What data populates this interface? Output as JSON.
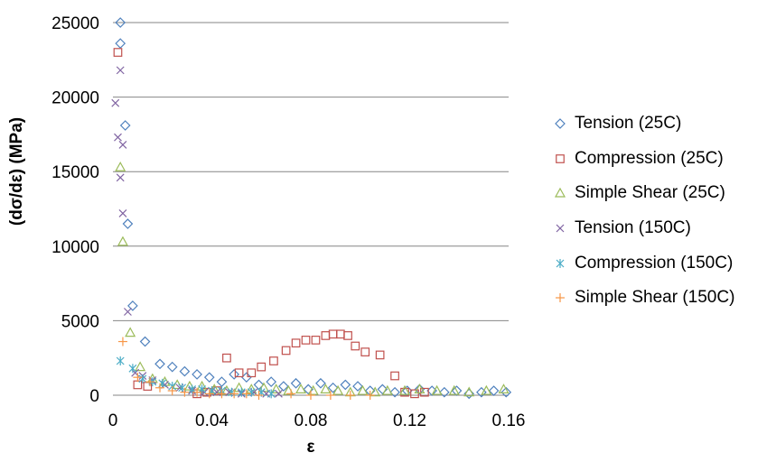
{
  "chart_data": {
    "type": "scatter",
    "title": "",
    "xlabel": "ε",
    "ylabel": "(dσ/dε) (MPa)",
    "xlim": [
      0,
      0.16
    ],
    "ylim": [
      0,
      25000
    ],
    "xticks": [
      0,
      0.04,
      0.08,
      0.12,
      0.16
    ],
    "xtick_labels": [
      "0",
      "0.04",
      "0.08",
      "0.12",
      "0.16"
    ],
    "yticks": [
      0,
      5000,
      10000,
      15000,
      20000,
      25000
    ],
    "ytick_labels": [
      "0",
      "5000",
      "10000",
      "15000",
      "20000",
      "25000"
    ],
    "grid": "horizontal",
    "legend_position": "right",
    "series": [
      {
        "name": "Tension (25C)",
        "marker": "diamond",
        "color": "#4f81bd",
        "points": [
          [
            0.003,
            25000
          ],
          [
            0.003,
            23600
          ],
          [
            0.005,
            18100
          ],
          [
            0.006,
            11500
          ],
          [
            0.008,
            6000
          ],
          [
            0.013,
            3600
          ],
          [
            0.019,
            2100
          ],
          [
            0.024,
            1900
          ],
          [
            0.029,
            1600
          ],
          [
            0.034,
            1400
          ],
          [
            0.039,
            1200
          ],
          [
            0.044,
            900
          ],
          [
            0.049,
            1400
          ],
          [
            0.054,
            1200
          ],
          [
            0.059,
            700
          ],
          [
            0.064,
            900
          ],
          [
            0.069,
            600
          ],
          [
            0.074,
            800
          ],
          [
            0.079,
            400
          ],
          [
            0.084,
            800
          ],
          [
            0.089,
            500
          ],
          [
            0.094,
            700
          ],
          [
            0.099,
            600
          ],
          [
            0.104,
            300
          ],
          [
            0.109,
            400
          ],
          [
            0.114,
            200
          ],
          [
            0.119,
            300
          ],
          [
            0.124,
            400
          ],
          [
            0.129,
            300
          ],
          [
            0.134,
            200
          ],
          [
            0.139,
            300
          ],
          [
            0.144,
            100
          ],
          [
            0.149,
            200
          ],
          [
            0.154,
            300
          ],
          [
            0.159,
            200
          ]
        ]
      },
      {
        "name": "Compression (25C)",
        "marker": "square",
        "color": "#c0504d",
        "points": [
          [
            0.002,
            23000
          ],
          [
            0.01,
            700
          ],
          [
            0.014,
            600
          ],
          [
            0.034,
            100
          ],
          [
            0.038,
            200
          ],
          [
            0.042,
            300
          ],
          [
            0.046,
            2500
          ],
          [
            0.051,
            1500
          ],
          [
            0.056,
            1500
          ],
          [
            0.06,
            1900
          ],
          [
            0.065,
            2300
          ],
          [
            0.07,
            3000
          ],
          [
            0.074,
            3500
          ],
          [
            0.078,
            3700
          ],
          [
            0.082,
            3700
          ],
          [
            0.086,
            4000
          ],
          [
            0.089,
            4100
          ],
          [
            0.092,
            4100
          ],
          [
            0.095,
            4000
          ],
          [
            0.098,
            3300
          ],
          [
            0.102,
            2900
          ],
          [
            0.108,
            2700
          ],
          [
            0.114,
            1300
          ],
          [
            0.118,
            200
          ],
          [
            0.122,
            100
          ],
          [
            0.126,
            200
          ]
        ]
      },
      {
        "name": "Simple Shear (25C)",
        "marker": "triangle",
        "color": "#9bbb59",
        "points": [
          [
            0.003,
            15300
          ],
          [
            0.004,
            10300
          ],
          [
            0.007,
            4200
          ],
          [
            0.011,
            1900
          ],
          [
            0.016,
            1100
          ],
          [
            0.021,
            900
          ],
          [
            0.026,
            700
          ],
          [
            0.031,
            600
          ],
          [
            0.036,
            600
          ],
          [
            0.041,
            400
          ],
          [
            0.046,
            300
          ],
          [
            0.051,
            500
          ],
          [
            0.056,
            400
          ],
          [
            0.061,
            500
          ],
          [
            0.066,
            400
          ],
          [
            0.071,
            300
          ],
          [
            0.076,
            400
          ],
          [
            0.081,
            300
          ],
          [
            0.086,
            400
          ],
          [
            0.091,
            300
          ],
          [
            0.096,
            200
          ],
          [
            0.101,
            300
          ],
          [
            0.106,
            200
          ],
          [
            0.111,
            300
          ],
          [
            0.118,
            300
          ],
          [
            0.124,
            400
          ],
          [
            0.131,
            300
          ],
          [
            0.138,
            300
          ],
          [
            0.144,
            200
          ],
          [
            0.151,
            300
          ],
          [
            0.158,
            400
          ]
        ]
      },
      {
        "name": "Tension (150C)",
        "marker": "x",
        "color": "#8064a2",
        "points": [
          [
            0.001,
            19600
          ],
          [
            0.002,
            17300
          ],
          [
            0.003,
            21800
          ],
          [
            0.003,
            14600
          ],
          [
            0.004,
            16800
          ],
          [
            0.004,
            12200
          ],
          [
            0.006,
            5600
          ],
          [
            0.009,
            1500
          ],
          [
            0.012,
            1300
          ],
          [
            0.016,
            1000
          ],
          [
            0.021,
            700
          ],
          [
            0.027,
            500
          ],
          [
            0.032,
            300
          ],
          [
            0.037,
            200
          ],
          [
            0.042,
            200
          ],
          [
            0.047,
            200
          ],
          [
            0.052,
            100
          ],
          [
            0.057,
            200
          ],
          [
            0.062,
            100
          ],
          [
            0.067,
            100
          ]
        ]
      },
      {
        "name": "Compression (150C)",
        "marker": "asterisk",
        "color": "#4bacc6",
        "points": [
          [
            0.003,
            2300
          ],
          [
            0.008,
            1800
          ],
          [
            0.012,
            1100
          ],
          [
            0.016,
            900
          ],
          [
            0.02,
            800
          ],
          [
            0.024,
            600
          ],
          [
            0.028,
            500
          ],
          [
            0.032,
            400
          ],
          [
            0.036,
            400
          ],
          [
            0.04,
            300
          ],
          [
            0.044,
            300
          ],
          [
            0.048,
            200
          ],
          [
            0.052,
            200
          ],
          [
            0.056,
            200
          ],
          [
            0.06,
            200
          ],
          [
            0.064,
            100
          ]
        ]
      },
      {
        "name": "Simple Shear (150C)",
        "marker": "plus",
        "color": "#f79646",
        "points": [
          [
            0.004,
            3600
          ],
          [
            0.01,
            1200
          ],
          [
            0.015,
            900
          ],
          [
            0.019,
            500
          ],
          [
            0.024,
            300
          ],
          [
            0.029,
            200
          ],
          [
            0.034,
            200
          ],
          [
            0.039,
            100
          ],
          [
            0.044,
            100
          ],
          [
            0.049,
            100
          ],
          [
            0.054,
            100
          ],
          [
            0.059,
            0
          ],
          [
            0.072,
            100
          ],
          [
            0.08,
            0
          ],
          [
            0.088,
            0
          ],
          [
            0.096,
            0
          ],
          [
            0.104,
            0
          ]
        ]
      }
    ]
  }
}
